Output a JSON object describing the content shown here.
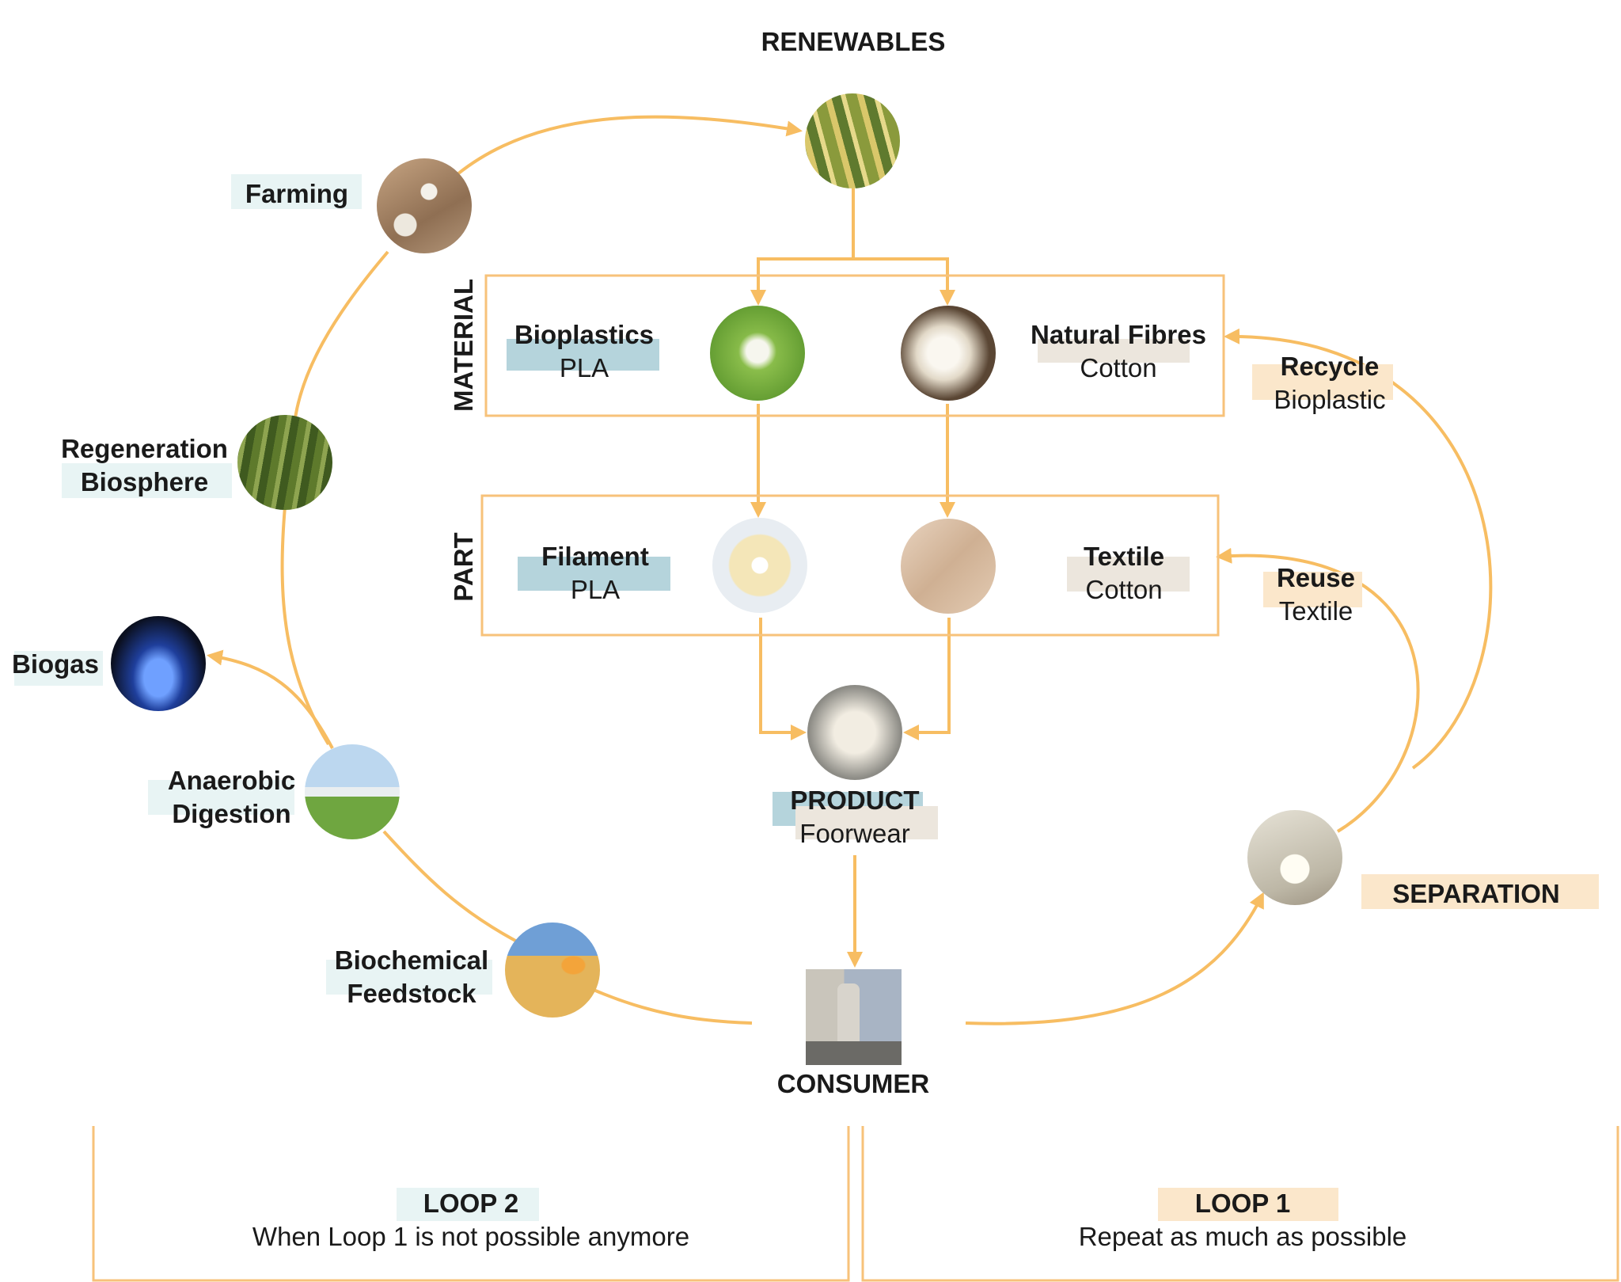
{
  "top": {
    "title": "RENEWABLES"
  },
  "rows": {
    "material": "MATERIAL",
    "part": "PART"
  },
  "material": {
    "bioplastics": {
      "title": "Bioplastics",
      "sub": "PLA"
    },
    "natural_fibres": {
      "title": "Natural Fibres",
      "sub": "Cotton"
    }
  },
  "part": {
    "filament": {
      "title": "Filament",
      "sub": "PLA"
    },
    "textile": {
      "title": "Textile",
      "sub": "Cotton"
    }
  },
  "product": {
    "title": "PRODUCT",
    "sub": "Foorwear"
  },
  "consumer": {
    "title": "CONSUMER"
  },
  "right": {
    "recycle": {
      "title": "Recycle",
      "sub": "Bioplastic"
    },
    "reuse": {
      "title": "Reuse",
      "sub": "Textile"
    },
    "separation": "SEPARATION"
  },
  "left": {
    "farming": "Farming",
    "regeneration": {
      "line1": "Regeneration",
      "line2": "Biosphere"
    },
    "biogas": "Biogas",
    "anaerobic": {
      "line1": "Anaerobic",
      "line2": "Digestion"
    },
    "biochemical": {
      "line1": "Biochemical",
      "line2": "Feedstock"
    }
  },
  "loops": {
    "loop2": {
      "title": "LOOP 2",
      "desc": "When Loop 1 is not possible anymore"
    },
    "loop1": {
      "title": "LOOP 1",
      "desc": "Repeat as much as possible"
    }
  },
  "colors": {
    "arrow": "#f7bd62",
    "teal_highlight": "#b5d4dc",
    "light_teal_highlight": "#e8f4f4",
    "beige_highlight": "#ece6dd",
    "peach_highlight": "#fbe7cb",
    "box_border": "#f7c27a"
  },
  "icons": [
    "corn-photo",
    "cotton-field-photo",
    "corn-stalk-photo",
    "gas-flame-photo",
    "biogas-plant-photo",
    "grain-flask-photo",
    "pla-pellets-photo",
    "cotton-fibre-photo",
    "filament-spool-photo",
    "fabric-photo",
    "shoe-photo",
    "consumer-photo",
    "separated-parts-photo"
  ]
}
